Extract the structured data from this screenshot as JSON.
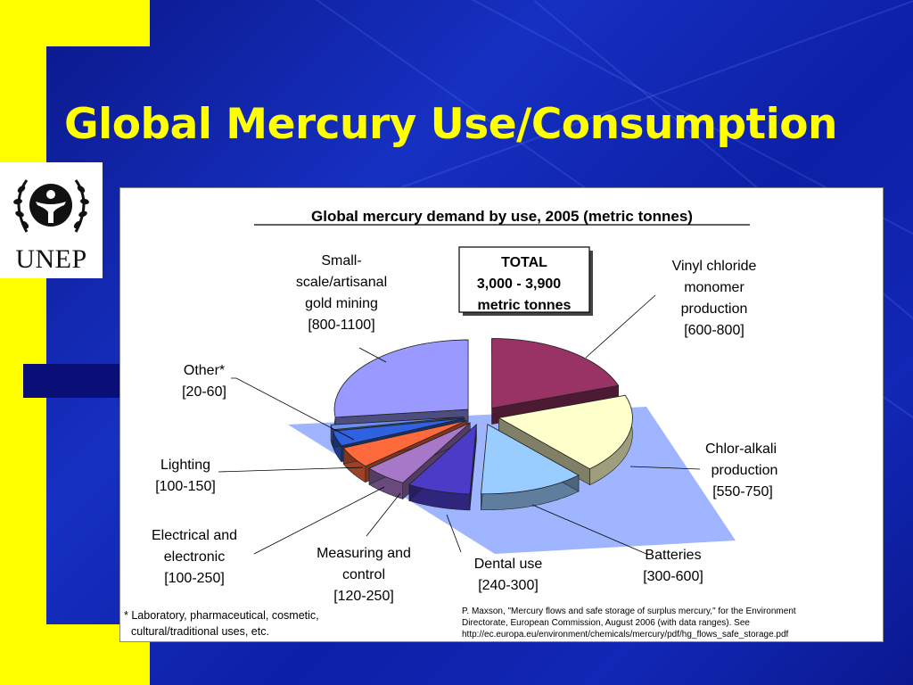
{
  "slide": {
    "title": "Global Mercury Use/Consumption",
    "logo_text": "UNEP",
    "colors": {
      "background": "#0b1a9c",
      "accent": "#ffff00",
      "title": "#ffff00"
    }
  },
  "chart_data": {
    "type": "pie",
    "title": "Global mercury demand by use, 2005 (metric tonnes)",
    "total_box": [
      "TOTAL",
      "3,000 - 3,900",
      "metric tonnes"
    ],
    "slices": [
      {
        "label": "Small-scale/artisanal gold mining",
        "range": "[800-1100]",
        "value": 950,
        "color": "#9999ff"
      },
      {
        "label": "Vinyl chloride monomer production",
        "range": "[600-800]",
        "value": 700,
        "color": "#993366"
      },
      {
        "label": "Chlor-alkali production",
        "range": "[550-750]",
        "value": 650,
        "color": "#ffffcc"
      },
      {
        "label": "Batteries",
        "range": "[300-600]",
        "value": 450,
        "color": "#99ccff"
      },
      {
        "label": "Dental use",
        "range": "[240-300]",
        "value": 270,
        "color": "#4b3bc8"
      },
      {
        "label": "Measuring and control",
        "range": "[120-250]",
        "value": 185,
        "color": "#a878c8"
      },
      {
        "label": "Electrical and electronic",
        "range": "[100-250]",
        "value": 175,
        "color": "#ff6a3c"
      },
      {
        "label": "Lighting",
        "range": "[100-150]",
        "value": 125,
        "color": "#2e62e0"
      },
      {
        "label": "Other*",
        "range": "[20-60]",
        "value": 40,
        "color": "#6b8ff0"
      }
    ],
    "footnote": [
      "* Laboratory, pharmaceutical, cosmetic,",
      "cultural/traditional uses, etc."
    ],
    "source": [
      "P. Maxson, \"Mercury flows and safe storage of surplus mercury,\" for the Environment",
      "Directorate, European Commission, August 2006 (with data ranges).  See",
      "http://ec.europa.eu/environment/chemicals/mercury/pdf/hg_flows_safe_storage.pdf"
    ],
    "label_lines": {
      "gold": [
        "Small-",
        "scale/artisanal",
        "gold mining",
        "[800-1100]"
      ],
      "vinyl": [
        "Vinyl chloride",
        "monomer",
        "production",
        "[600-800]"
      ],
      "chlor": [
        "Chlor-alkali",
        "production",
        "[550-750]"
      ],
      "batteries": [
        "Batteries",
        "[300-600]"
      ],
      "dental": [
        "Dental use",
        "[240-300]"
      ],
      "measuring": [
        "Measuring and",
        "control",
        "[120-250]"
      ],
      "electrical": [
        "Electrical and",
        "electronic",
        "[100-250]"
      ],
      "lighting": [
        "Lighting",
        "[100-150]"
      ],
      "other": [
        "Other*",
        "[20-60]"
      ]
    }
  }
}
